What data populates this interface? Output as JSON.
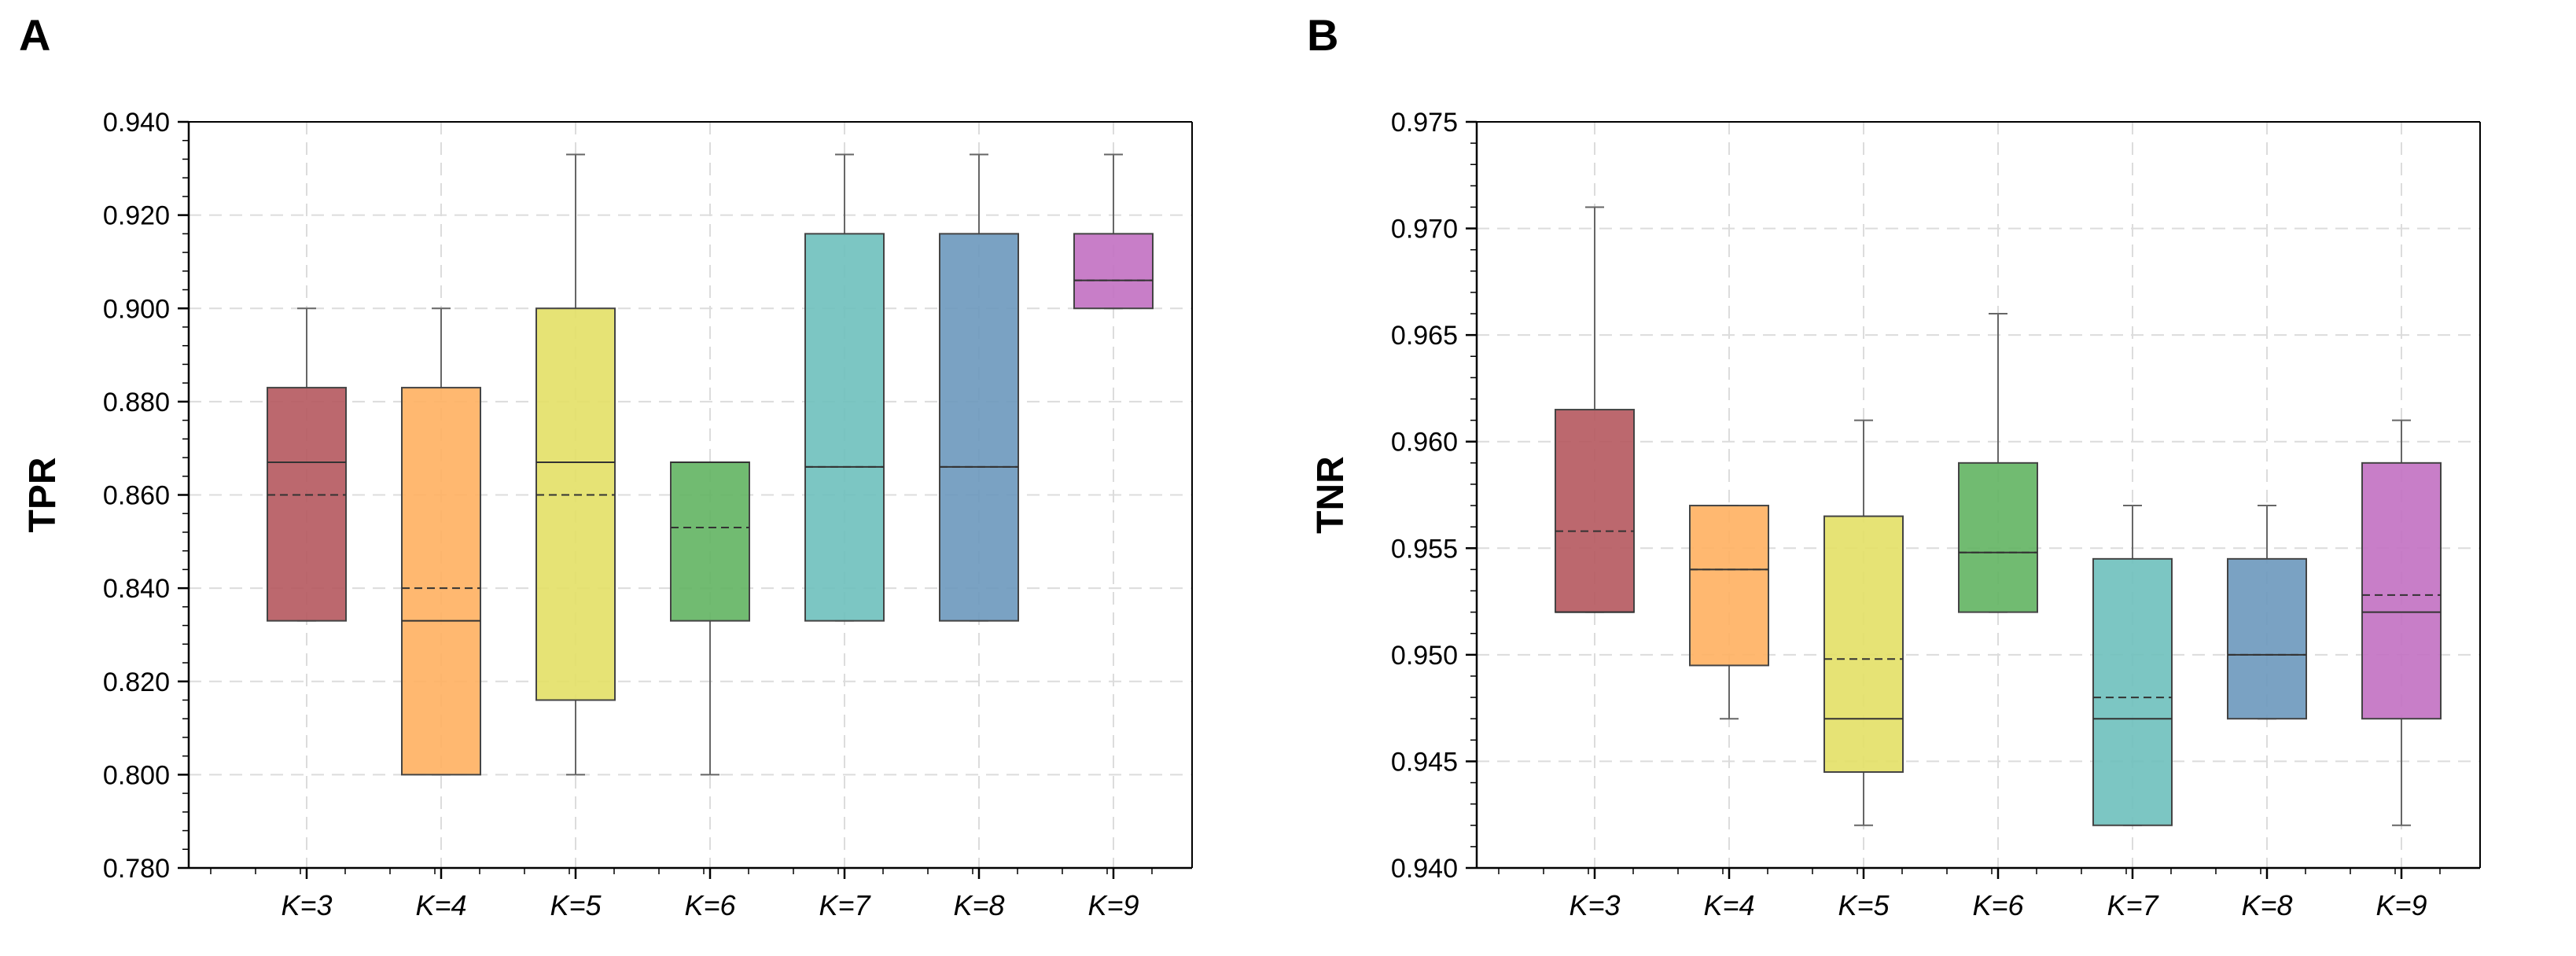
{
  "chart_data": [
    {
      "panel": "A",
      "type": "box",
      "ylabel": "TPR",
      "ylim": [
        0.78,
        0.94
      ],
      "yticks": [
        "0.780",
        "0.800",
        "0.820",
        "0.840",
        "0.860",
        "0.880",
        "0.900",
        "0.920",
        "0.940"
      ],
      "categories": [
        "K=3",
        "K=4",
        "K=5",
        "K=6",
        "K=7",
        "K=8",
        "K=9"
      ],
      "grid": true,
      "boxes": [
        {
          "category": "K=3",
          "color": "#b5585e",
          "whisker_low": 0.833,
          "q1": 0.833,
          "median": 0.867,
          "mean": 0.86,
          "q3": 0.883,
          "whisker_high": 0.9
        },
        {
          "category": "K=4",
          "color": "#ffb060",
          "whisker_low": 0.8,
          "q1": 0.8,
          "median": 0.833,
          "mean": 0.84,
          "q3": 0.883,
          "whisker_high": 0.9
        },
        {
          "category": "K=5",
          "color": "#e3e066",
          "whisker_low": 0.8,
          "q1": 0.816,
          "median": 0.867,
          "mean": 0.86,
          "q3": 0.9,
          "whisker_high": 0.933
        },
        {
          "category": "K=6",
          "color": "#62b462",
          "whisker_low": 0.8,
          "q1": 0.833,
          "median": 0.867,
          "mean": 0.853,
          "q3": 0.867,
          "whisker_high": 0.867
        },
        {
          "category": "K=7",
          "color": "#6ec0bd",
          "whisker_low": 0.833,
          "q1": 0.833,
          "median": 0.866,
          "mean": 0.866,
          "q3": 0.916,
          "whisker_high": 0.933
        },
        {
          "category": "K=8",
          "color": "#6c98bd",
          "whisker_low": 0.833,
          "q1": 0.833,
          "median": 0.866,
          "mean": 0.866,
          "q3": 0.916,
          "whisker_high": 0.933
        },
        {
          "category": "K=9",
          "color": "#c270c2",
          "whisker_low": 0.9,
          "q1": 0.9,
          "median": 0.906,
          "mean": 0.906,
          "q3": 0.916,
          "whisker_high": 0.933
        }
      ]
    },
    {
      "panel": "B",
      "type": "box",
      "ylabel": "TNR",
      "ylim": [
        0.94,
        0.975
      ],
      "yticks": [
        "0.940",
        "0.945",
        "0.950",
        "0.955",
        "0.960",
        "0.965",
        "0.970",
        "0.975"
      ],
      "categories": [
        "K=3",
        "K=4",
        "K=5",
        "K=6",
        "K=7",
        "K=8",
        "K=9"
      ],
      "grid": true,
      "boxes": [
        {
          "category": "K=3",
          "color": "#b5585e",
          "whisker_low": 0.952,
          "q1": 0.952,
          "median": 0.952,
          "mean": 0.9558,
          "q3": 0.9615,
          "whisker_high": 0.971
        },
        {
          "category": "K=4",
          "color": "#ffb060",
          "whisker_low": 0.947,
          "q1": 0.9495,
          "median": 0.954,
          "mean": 0.954,
          "q3": 0.957,
          "whisker_high": 0.957
        },
        {
          "category": "K=5",
          "color": "#e3e066",
          "whisker_low": 0.942,
          "q1": 0.9445,
          "median": 0.947,
          "mean": 0.9498,
          "q3": 0.9565,
          "whisker_high": 0.961
        },
        {
          "category": "K=6",
          "color": "#62b462",
          "whisker_low": 0.952,
          "q1": 0.952,
          "median": 0.9548,
          "mean": 0.9548,
          "q3": 0.959,
          "whisker_high": 0.966
        },
        {
          "category": "K=7",
          "color": "#6ec0bd",
          "whisker_low": 0.942,
          "q1": 0.942,
          "median": 0.947,
          "mean": 0.948,
          "q3": 0.9545,
          "whisker_high": 0.957
        },
        {
          "category": "K=8",
          "color": "#6c98bd",
          "whisker_low": 0.947,
          "q1": 0.947,
          "median": 0.95,
          "mean": 0.95,
          "q3": 0.9545,
          "whisker_high": 0.957
        },
        {
          "category": "K=9",
          "color": "#c270c2",
          "whisker_low": 0.942,
          "q1": 0.947,
          "median": 0.952,
          "mean": 0.9528,
          "q3": 0.959,
          "whisker_high": 0.961
        }
      ]
    }
  ]
}
